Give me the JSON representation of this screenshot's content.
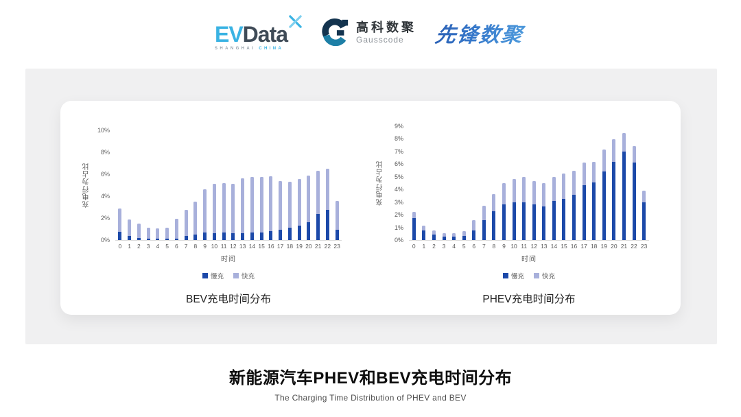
{
  "header": {
    "evdata": {
      "ev": "EV",
      "data": "Data",
      "sub_shanghai": "SHANGHAI",
      "sub_china": "CHINA"
    },
    "gausscode": {
      "cn": "高科数聚",
      "en": "Gausscode"
    },
    "xianfeng": {
      "text": "先锋数聚"
    }
  },
  "chart_data": [
    {
      "type": "bar",
      "stacked": true,
      "title": "BEV充电时间分布",
      "xlabel": "时间",
      "ylabel": "充电行为占比",
      "ylim": [
        0,
        10
      ],
      "ytick_step": 2,
      "ytick_suffix": "%",
      "grid": false,
      "legend_position": "bottom",
      "categories": [
        "0",
        "1",
        "2",
        "3",
        "4",
        "5",
        "6",
        "7",
        "8",
        "9",
        "10",
        "11",
        "12",
        "13",
        "14",
        "15",
        "16",
        "17",
        "18",
        "19",
        "20",
        "21",
        "22",
        "23"
      ],
      "series": [
        {
          "name": "慢充",
          "color": "#1c49a9",
          "values": [
            0.75,
            0.35,
            0.2,
            0.1,
            0.1,
            0.1,
            0.15,
            0.35,
            0.5,
            0.7,
            0.65,
            0.7,
            0.6,
            0.65,
            0.7,
            0.7,
            0.8,
            0.95,
            1.1,
            1.3,
            1.6,
            2.4,
            2.75,
            0.95
          ]
        },
        {
          "name": "快充",
          "color": "#a8b0db",
          "values": [
            2.1,
            1.5,
            1.3,
            1.05,
            0.95,
            1.05,
            1.8,
            2.4,
            3.0,
            3.9,
            4.5,
            4.5,
            4.55,
            4.95,
            5.05,
            5.05,
            5.0,
            4.45,
            4.2,
            4.25,
            4.25,
            3.9,
            3.75,
            2.6
          ]
        }
      ]
    },
    {
      "type": "bar",
      "stacked": true,
      "title": "PHEV充电时间分布",
      "xlabel": "时间",
      "ylabel": "充电行为占比",
      "ylim": [
        0,
        9
      ],
      "ytick_step": 1,
      "ytick_suffix": "%",
      "grid": false,
      "legend_position": "bottom",
      "categories": [
        "0",
        "1",
        "2",
        "3",
        "4",
        "5",
        "6",
        "7",
        "8",
        "9",
        "10",
        "11",
        "12",
        "13",
        "14",
        "15",
        "16",
        "17",
        "18",
        "19",
        "20",
        "21",
        "22",
        "23"
      ],
      "series": [
        {
          "name": "慢充",
          "color": "#1c49a9",
          "values": [
            1.75,
            0.75,
            0.45,
            0.25,
            0.25,
            0.3,
            0.75,
            1.6,
            2.3,
            2.8,
            3.0,
            3.0,
            2.8,
            2.65,
            3.1,
            3.25,
            3.6,
            4.35,
            4.55,
            5.4,
            6.2,
            7.0,
            6.15,
            3.0
          ]
        },
        {
          "name": "快充",
          "color": "#a8b0db",
          "values": [
            0.45,
            0.4,
            0.3,
            0.3,
            0.3,
            0.4,
            0.85,
            1.1,
            1.35,
            1.7,
            1.8,
            2.0,
            1.85,
            1.85,
            1.9,
            2.0,
            1.9,
            1.8,
            1.65,
            1.75,
            1.75,
            1.45,
            1.3,
            0.9
          ]
        }
      ]
    }
  ],
  "footer": {
    "title": "新能源汽车PHEV和BEV充电时间分布",
    "subtitle": "The Charging Time Distribution of PHEV and BEV"
  },
  "colors": {
    "slow_charge": "#1c49a9",
    "fast_charge": "#a8b0db",
    "band_background": "#f0f0f1",
    "axis_text": "#595959",
    "evdata_blue": "#3ab3e3",
    "evdata_dark": "#3f4b57",
    "gauss_navy": "#14344f",
    "gauss_teal": "#1d7fa6",
    "xianfeng_blue": "#3679cb"
  }
}
